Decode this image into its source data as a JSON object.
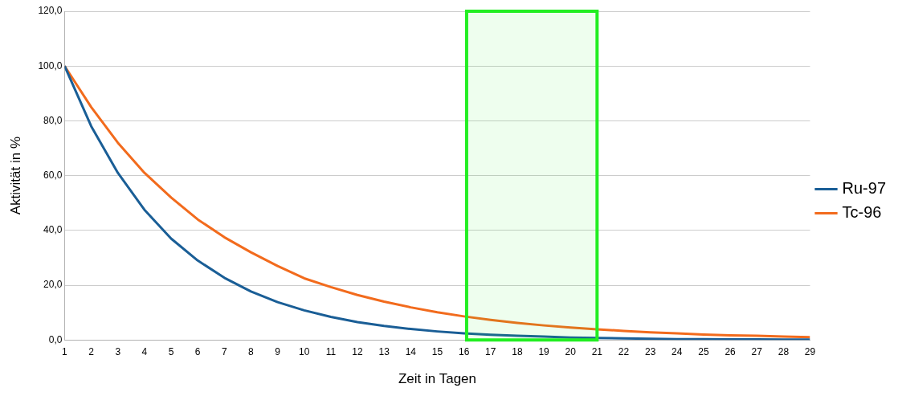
{
  "chart_data": {
    "type": "line",
    "xlabel": "Zeit in Tagen",
    "ylabel": "Aktivität in %",
    "x": [
      1,
      2,
      3,
      4,
      5,
      6,
      7,
      8,
      9,
      10,
      11,
      12,
      13,
      14,
      15,
      16,
      17,
      18,
      19,
      20,
      21,
      22,
      23,
      24,
      25,
      26,
      27,
      28,
      29
    ],
    "series": [
      {
        "name": "Ru-97",
        "color": "#1a5e96",
        "values": [
          100,
          78,
          61,
          47.5,
          37,
          29,
          22.7,
          17.7,
          13.8,
          10.8,
          8.4,
          6.5,
          5.1,
          4.0,
          3.1,
          2.4,
          1.9,
          1.5,
          1.2,
          0.9,
          0.7,
          0.6,
          0.4,
          0.3,
          0.3,
          0.2,
          0.2,
          0.1,
          0.1
        ]
      },
      {
        "name": "Tc-96",
        "color": "#f26b1d",
        "values": [
          100,
          85,
          72,
          61,
          52,
          44,
          37.5,
          32,
          27,
          22.5,
          19.3,
          16.4,
          14,
          11.9,
          10.1,
          8.6,
          7.3,
          6.2,
          5.3,
          4.5,
          3.9,
          3.3,
          2.8,
          2.4,
          2.0,
          1.7,
          1.5,
          1.2,
          1.0
        ]
      }
    ],
    "xlim": [
      1,
      29
    ],
    "xticks": [
      1,
      2,
      3,
      4,
      5,
      6,
      7,
      8,
      9,
      10,
      11,
      12,
      13,
      14,
      15,
      16,
      17,
      18,
      19,
      20,
      21,
      22,
      23,
      24,
      25,
      26,
      27,
      28,
      29
    ],
    "ylim": [
      0,
      120
    ],
    "yticks": [
      {
        "value": 0,
        "label": "0,0"
      },
      {
        "value": 20,
        "label": "20,0"
      },
      {
        "value": 40,
        "label": "40,0"
      },
      {
        "value": 60,
        "label": "60,0"
      },
      {
        "value": 80,
        "label": "80,0"
      },
      {
        "value": 100,
        "label": "100,0"
      },
      {
        "value": 120,
        "label": "120,0"
      }
    ],
    "bands": [
      {
        "axis": "x",
        "from": 16.1,
        "to": 21,
        "color": "#22ee22"
      }
    ],
    "grid": "y",
    "legend": "right",
    "marker": "none",
    "line_style": "solid"
  }
}
